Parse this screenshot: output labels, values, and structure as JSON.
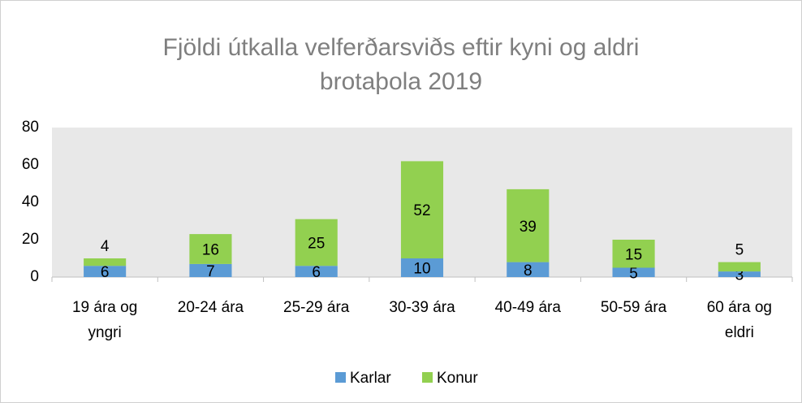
{
  "chart_data": {
    "type": "bar",
    "stacked": true,
    "title": "Fjöldi útkalla velferðarsviðs eftir kyni og aldri brotaþola 2019",
    "categories": [
      "19 ára og yngri",
      "20-24 ára",
      "25-29 ára",
      "30-39 ára",
      "40-49 ára",
      "50-59 ára",
      "60 ára og eldri"
    ],
    "series": [
      {
        "name": "Karlar",
        "color": "#5b9bd5",
        "values": [
          6,
          7,
          6,
          10,
          8,
          5,
          3
        ]
      },
      {
        "name": "Konur",
        "color": "#92d050",
        "values": [
          4,
          16,
          25,
          52,
          39,
          15,
          5
        ]
      }
    ],
    "ylim": [
      0,
      80
    ],
    "yticks": [
      0,
      20,
      40,
      60,
      80
    ],
    "grid": false,
    "legend": "bottom"
  }
}
